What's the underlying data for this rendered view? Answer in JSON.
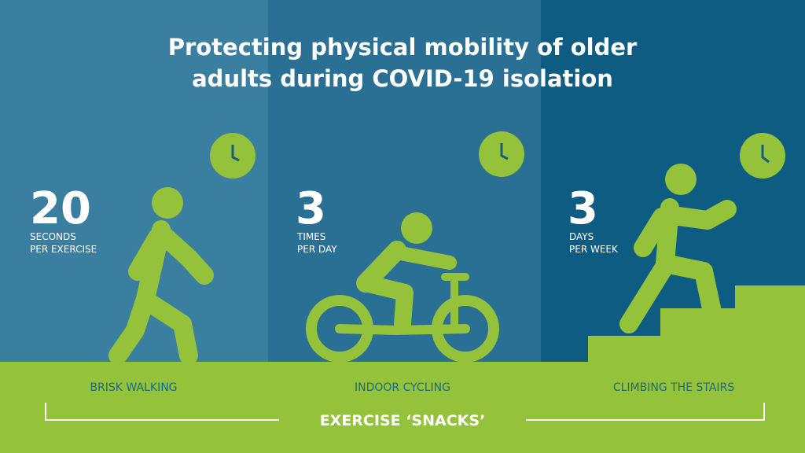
{
  "title": {
    "line1": "Protecting physical mobility of older",
    "line2": "adults during COVID-19 isolation"
  },
  "panels": [
    {
      "number": 20,
      "unit1": "SECONDS",
      "unit2": "PER EXERCISE",
      "activity": "BRISK WALKING"
    },
    {
      "number": 3,
      "unit1": "TIMES",
      "unit2": "PER DAY",
      "activity": "INDOOR CYCLING"
    },
    {
      "number": 3,
      "unit1": "DAYS",
      "unit2": "PER WEEK",
      "activity": "CLIMBING THE STAIRS"
    }
  ],
  "footer": "EXERCISE ‘SNACKS’"
}
